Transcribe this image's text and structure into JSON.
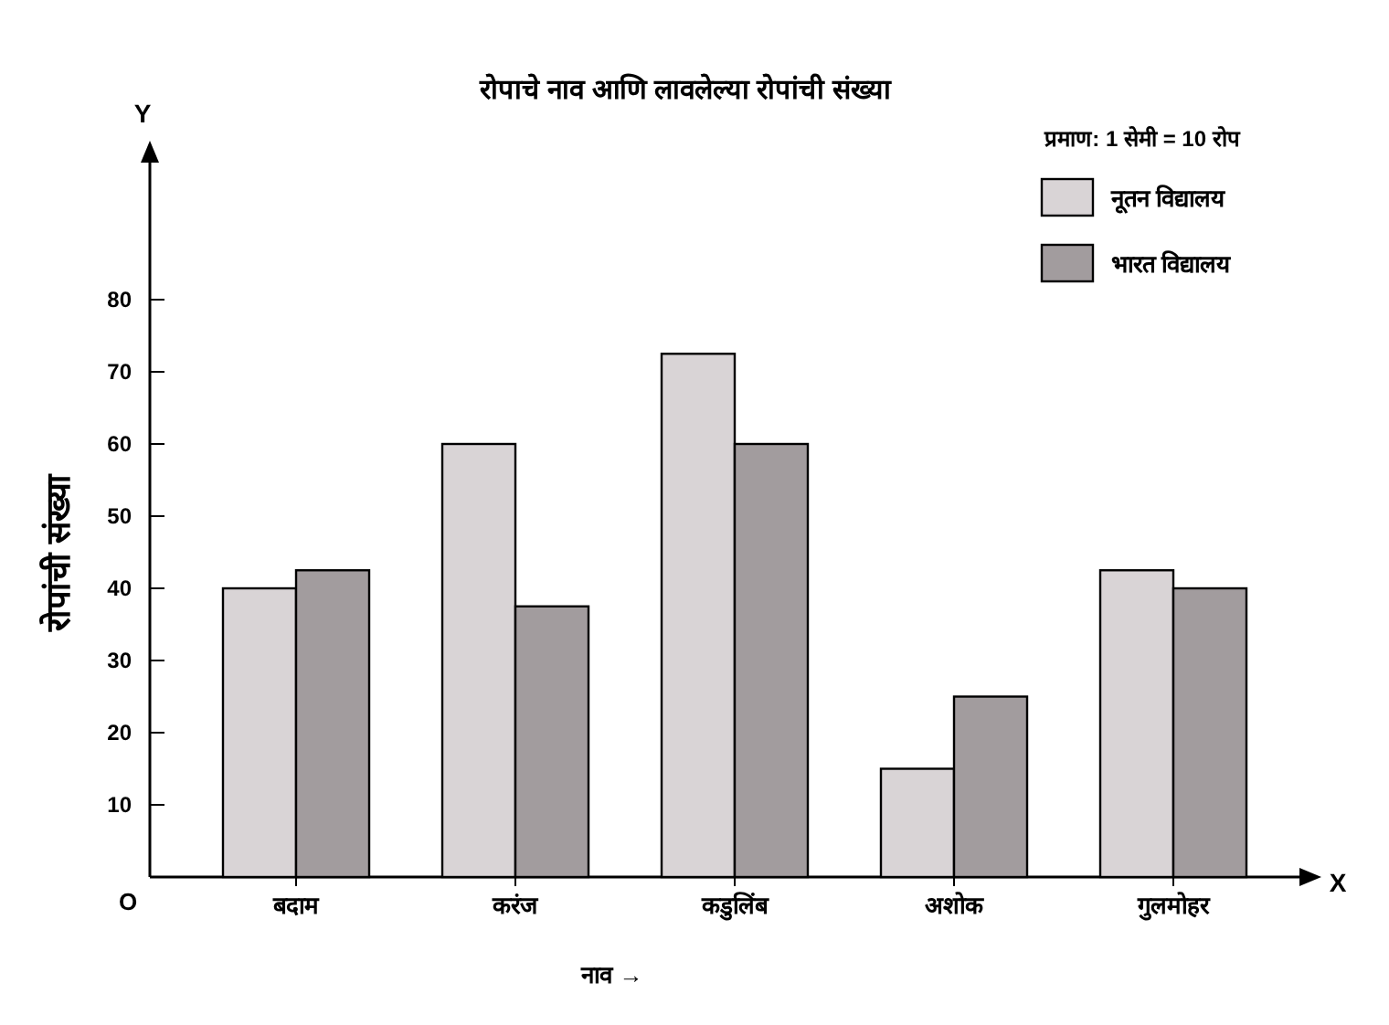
{
  "chart_data": {
    "type": "bar",
    "title": "रोपाचे नाव आणि लावलेल्या रोपांची संख्या",
    "xlabel": "नाव →",
    "ylabel": "रोपांची संख्या",
    "categories": [
      "बदाम",
      "करंज",
      "कडुलिंब",
      "अशोक",
      "गुलमोहर"
    ],
    "series": [
      {
        "name": "नूतन विद्यालय",
        "color": "#d9d4d6",
        "values": [
          40,
          60,
          72.5,
          15,
          42.5
        ]
      },
      {
        "name": "भारत विद्यालय",
        "color": "#a29c9e",
        "values": [
          42.5,
          37.5,
          60,
          25,
          40
        ]
      }
    ],
    "ylim": [
      0,
      100
    ],
    "yticks": [
      10,
      20,
      30,
      40,
      50,
      60,
      70,
      80
    ],
    "legend": "top right",
    "annotations": [
      "प्रमाण: 1 सेमी = 10 रोप",
      "O",
      "X",
      "Y"
    ]
  }
}
